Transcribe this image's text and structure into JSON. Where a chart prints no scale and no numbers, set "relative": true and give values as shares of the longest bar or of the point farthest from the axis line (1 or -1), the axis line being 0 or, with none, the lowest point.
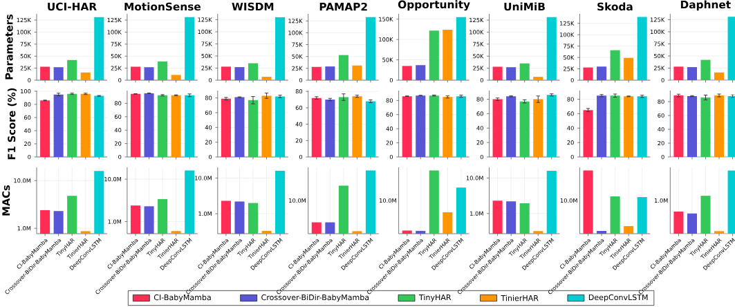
{
  "chart_data": [
    {
      "type": "bar",
      "title": "UCI-HAR",
      "ylabel": "Parameters",
      "categories": [
        null,
        null,
        null,
        null,
        null
      ],
      "colors": [
        "#ff2d55",
        "#5856d6",
        "#34c759",
        "#ff9500",
        "#00cdd2"
      ],
      "values": [
        28000,
        27000,
        42000,
        16000,
        131000
      ],
      "ylim": [
        0,
        138000
      ],
      "yticks": [
        0,
        {
          "value": 25000,
          "label": "25K"
        },
        {
          "value": 50000,
          "label": "50K"
        },
        {
          "value": 75000,
          "label": "75K"
        },
        {
          "value": 100000,
          "label": "100K"
        },
        {
          "value": 125000,
          "label": "125K"
        }
      ],
      "grid": "y",
      "tick_labels": "y"
    },
    {
      "type": "bar",
      "title": "MotionSense",
      "categories": [
        null,
        null,
        null,
        null,
        null
      ],
      "colors": [
        "#ff2d55",
        "#5856d6",
        "#34c759",
        "#ff9500",
        "#00cdd2"
      ],
      "values": [
        28000,
        27000,
        39000,
        11000,
        131000
      ],
      "ylim": [
        0,
        138000
      ],
      "yticks": [
        0,
        {
          "value": 25000,
          "label": "25K"
        },
        {
          "value": 50000,
          "label": "50K"
        },
        {
          "value": 75000,
          "label": "75K"
        },
        {
          "value": 100000,
          "label": "100K"
        },
        {
          "value": 125000,
          "label": "125K"
        }
      ],
      "grid": "y",
      "tick_labels": "y"
    },
    {
      "type": "bar",
      "title": "WISDM",
      "categories": [
        null,
        null,
        null,
        null,
        null
      ],
      "colors": [
        "#ff2d55",
        "#5856d6",
        "#34c759",
        "#ff9500",
        "#00cdd2"
      ],
      "values": [
        28000,
        27000,
        35000,
        7000,
        130000
      ],
      "ylim": [
        0,
        137000
      ],
      "yticks": [
        0,
        {
          "value": 25000,
          "label": "25K"
        },
        {
          "value": 50000,
          "label": "50K"
        },
        {
          "value": 75000,
          "label": "75K"
        },
        {
          "value": 100000,
          "label": "100K"
        },
        {
          "value": 125000,
          "label": "125K"
        }
      ],
      "grid": "y",
      "tick_labels": "y"
    },
    {
      "type": "bar",
      "title": "PAMAP2",
      "categories": [
        null,
        null,
        null,
        null,
        null
      ],
      "colors": [
        "#ff2d55",
        "#5856d6",
        "#34c759",
        "#ff9500",
        "#00cdd2"
      ],
      "values": [
        28000,
        29000,
        53000,
        31000,
        133000
      ],
      "ylim": [
        0,
        140000
      ],
      "yticks": [
        0,
        {
          "value": 25000,
          "label": "25K"
        },
        {
          "value": 50000,
          "label": "50K"
        },
        {
          "value": 75000,
          "label": "75K"
        },
        {
          "value": 100000,
          "label": "100K"
        },
        {
          "value": 125000,
          "label": "125K"
        }
      ],
      "grid": "y",
      "tick_labels": "y"
    },
    {
      "type": "bar",
      "title": "Opportunity",
      "categories": [
        null,
        null,
        null,
        null,
        null
      ],
      "colors": [
        "#ff2d55",
        "#5856d6",
        "#34c759",
        "#ff9500",
        "#00cdd2"
      ],
      "values": [
        35000,
        37000,
        122000,
        124000,
        155000
      ],
      "ylim": [
        0,
        163000
      ],
      "yticks": [
        0,
        {
          "value": 50000,
          "label": "50K"
        },
        {
          "value": 100000,
          "label": "100K"
        },
        {
          "value": 150000,
          "label": "150K"
        }
      ],
      "grid": "y",
      "tick_labels": "y"
    },
    {
      "type": "bar",
      "title": "UniMiB",
      "categories": [
        null,
        null,
        null,
        null,
        null
      ],
      "colors": [
        "#ff2d55",
        "#5856d6",
        "#34c759",
        "#ff9500",
        "#00cdd2"
      ],
      "values": [
        28000,
        27000,
        35000,
        7000,
        131000
      ],
      "ylim": [
        0,
        138000
      ],
      "yticks": [
        0,
        {
          "value": 25000,
          "label": "25K"
        },
        {
          "value": 50000,
          "label": "50K"
        },
        {
          "value": 75000,
          "label": "75K"
        },
        {
          "value": 100000,
          "label": "100K"
        },
        {
          "value": 125000,
          "label": "125K"
        }
      ],
      "grid": "y",
      "tick_labels": "y"
    },
    {
      "type": "bar",
      "title": "Skoda",
      "categories": [
        null,
        null,
        null,
        null,
        null
      ],
      "colors": [
        "#ff2d55",
        "#5856d6",
        "#34c759",
        "#ff9500",
        "#00cdd2"
      ],
      "values": [
        28000,
        30000,
        66000,
        49000,
        139000
      ],
      "ylim": [
        0,
        146000
      ],
      "yticks": [
        0,
        {
          "value": 25000,
          "label": "25K"
        },
        {
          "value": 50000,
          "label": "50K"
        },
        {
          "value": 75000,
          "label": "75K"
        },
        {
          "value": 100000,
          "label": "100K"
        },
        {
          "value": 125000,
          "label": "125K"
        }
      ],
      "grid": "y",
      "tick_labels": "y"
    },
    {
      "type": "bar",
      "title": "Daphnet",
      "categories": [
        null,
        null,
        null,
        null,
        null
      ],
      "colors": [
        "#ff2d55",
        "#5856d6",
        "#34c759",
        "#ff9500",
        "#00cdd2"
      ],
      "values": [
        28000,
        27000,
        42000,
        16000,
        131000
      ],
      "ylim": [
        0,
        137000
      ],
      "yticks": [
        0,
        {
          "value": 25000,
          "label": "25K"
        },
        {
          "value": 50000,
          "label": "50K"
        },
        {
          "value": 75000,
          "label": "75K"
        },
        {
          "value": 100000,
          "label": "100K"
        },
        {
          "value": 125000,
          "label": "125K"
        }
      ],
      "grid": "y",
      "tick_labels": "y"
    },
    {
      "type": "bar",
      "ylabel": "F1 Score (%)",
      "categories": [
        null,
        null,
        null,
        null,
        null
      ],
      "colors": [
        "#ff2d55",
        "#5856d6",
        "#34c759",
        "#ff9500",
        "#00cdd2"
      ],
      "values": [
        86,
        95,
        96,
        96,
        93
      ],
      "errors": [
        0.5,
        2,
        1,
        1,
        0.5
      ],
      "ylim": [
        0,
        101
      ],
      "yticks": [
        0,
        20,
        40,
        60,
        80,
        100
      ],
      "grid": "y",
      "tick_labels": "y"
    },
    {
      "type": "bar",
      "categories": [
        null,
        null,
        null,
        null,
        null
      ],
      "colors": [
        "#ff2d55",
        "#5856d6",
        "#34c759",
        "#ff9500",
        "#00cdd2"
      ],
      "values": [
        94,
        95,
        92,
        92,
        92
      ],
      "errors": [
        0.3,
        0.3,
        1,
        0.7,
        2
      ],
      "ylim": [
        0,
        99
      ],
      "yticks": [
        0,
        20,
        40,
        60,
        80
      ],
      "grid": "y",
      "tick_labels": "y"
    },
    {
      "type": "bar",
      "categories": [
        null,
        null,
        null,
        null,
        null
      ],
      "colors": [
        "#ff2d55",
        "#5856d6",
        "#34c759",
        "#ff9500",
        "#00cdd2"
      ],
      "values": [
        79,
        81,
        77,
        83,
        82
      ],
      "errors": [
        1.7,
        0.5,
        5,
        3.5,
        1.7
      ],
      "ylim": [
        0,
        90
      ],
      "yticks": [
        0,
        20,
        40,
        60,
        80
      ],
      "grid": "y",
      "tick_labels": "y"
    },
    {
      "type": "bar",
      "categories": [
        null,
        null,
        null,
        null,
        null
      ],
      "colors": [
        "#ff2d55",
        "#5856d6",
        "#34c759",
        "#ff9500",
        "#00cdd2"
      ],
      "values": [
        72,
        70,
        73,
        74,
        68
      ],
      "errors": [
        1.5,
        1.5,
        4,
        1.3,
        1.7
      ],
      "ylim": [
        0,
        81
      ],
      "yticks": [
        0,
        20,
        40,
        60,
        80
      ],
      "grid": "y",
      "tick_labels": "y"
    },
    {
      "type": "bar",
      "categories": [
        null,
        null,
        null,
        null,
        null
      ],
      "colors": [
        "#ff2d55",
        "#5856d6",
        "#34c759",
        "#ff9500",
        "#00cdd2"
      ],
      "values": [
        86,
        87,
        87,
        85,
        86
      ],
      "errors": [
        0.4,
        0.3,
        0.7,
        1.5,
        1.5
      ],
      "ylim": [
        0,
        94
      ],
      "yticks": [
        0,
        20,
        40,
        60,
        80
      ],
      "grid": "y",
      "tick_labels": "y"
    },
    {
      "type": "bar",
      "categories": [
        null,
        null,
        null,
        null,
        null
      ],
      "colors": [
        "#ff2d55",
        "#5856d6",
        "#34c759",
        "#ff9500",
        "#00cdd2"
      ],
      "values": [
        80,
        84,
        77,
        80,
        86
      ],
      "errors": [
        1.7,
        0.7,
        2.2,
        4.5,
        1.5
      ],
      "ylim": [
        0,
        92
      ],
      "yticks": [
        0,
        20,
        40,
        60,
        80
      ],
      "grid": "y",
      "tick_labels": "y"
    },
    {
      "type": "bar",
      "categories": [
        null,
        null,
        null,
        null,
        null
      ],
      "colors": [
        "#ff2d55",
        "#5856d6",
        "#34c759",
        "#ff9500",
        "#00cdd2"
      ],
      "values": [
        65,
        85,
        85,
        84,
        84
      ],
      "errors": [
        2.2,
        1.5,
        2.2,
        0.5,
        1.5
      ],
      "ylim": [
        0,
        92
      ],
      "yticks": [
        0,
        20,
        40,
        60,
        80
      ],
      "grid": "y",
      "tick_labels": "y"
    },
    {
      "type": "bar",
      "categories": [
        null,
        null,
        null,
        null,
        null
      ],
      "colors": [
        "#ff2d55",
        "#5856d6",
        "#34c759",
        "#ff9500",
        "#00cdd2"
      ],
      "values": [
        89,
        88,
        86,
        89,
        88
      ],
      "errors": [
        1.8,
        0.7,
        3.5,
        2,
        2
      ],
      "ylim": [
        0,
        96
      ],
      "yticks": [
        0,
        20,
        40,
        60,
        80
      ],
      "grid": "y",
      "tick_labels": "y"
    },
    {
      "type": "bar",
      "ylabel": "MACs",
      "categories": [
        "CI-BabyMamba",
        "Crossover-BiDir-BabyMamba",
        "TinyHAR",
        "TinierHAR",
        "DeepConvLSTM"
      ],
      "series": [
        {
          "name": "CI-BabyMamba",
          "color": "#ff2d55",
          "values": [
            2400000,
            null,
            null,
            null,
            null
          ]
        },
        {
          "name": "Crossover-BiDir-BabyMamba",
          "color": "#5856d6",
          "values": [
            null,
            2300000,
            null,
            null,
            null
          ]
        },
        {
          "name": "TinyHAR",
          "color": "#34c759",
          "values": [
            null,
            null,
            4800000,
            null,
            null
          ]
        },
        {
          "name": "TinierHAR",
          "color": "#ff9500",
          "values": [
            null,
            null,
            null,
            870000,
            null
          ]
        },
        {
          "name": "DeepConvLSTM",
          "color": "#00cdd2",
          "values": [
            null,
            null,
            null,
            null,
            16000000
          ]
        }
      ],
      "log": true,
      "ylim": [
        770000,
        19000000
      ],
      "yticks": [
        {
          "value": 1000000,
          "label": "1.0M"
        },
        {
          "value": 10000000,
          "label": "10.0M"
        }
      ],
      "grid": true,
      "legend": "bottom"
    },
    {
      "type": "bar",
      "categories": [
        "CI-BabyMamba",
        "Crossover-BiDir-BabyMamba",
        "TinyHAR",
        "TinierHAR",
        "DeepConvLSTM"
      ],
      "colors": [
        "#ff2d55",
        "#5856d6",
        "#34c759",
        "#ff9500",
        "#00cdd2"
      ],
      "values": [
        2400000,
        2300000,
        3400000,
        600000,
        16000000
      ],
      "log": true,
      "ylim": [
        520000,
        19000000
      ],
      "yticks": [
        {
          "value": 1000000,
          "label": "1.0M"
        },
        {
          "value": 10000000,
          "label": "10.0M"
        }
      ],
      "grid": true
    },
    {
      "type": "bar",
      "categories": [
        "CI-BabyMamba",
        "Crossover-BiDir-BabyMamba",
        "TinyHAR",
        "TinierHAR",
        "DeepConvLSTM"
      ],
      "colors": [
        "#ff2d55",
        "#5856d6",
        "#34c759",
        "#ff9500",
        "#00cdd2"
      ],
      "values": [
        2300000,
        2200000,
        2000000,
        330000,
        16000000
      ],
      "log": true,
      "ylim": [
        275000,
        20000000
      ],
      "yticks": [
        {
          "value": 1000000,
          "label": "1.0M"
        },
        {
          "value": 10000000,
          "label": "10.0M"
        }
      ],
      "grid": true
    },
    {
      "type": "bar",
      "categories": [
        "CI-BabyMamba",
        "Crossover-BiDir-BabyMamba",
        "TinyHAR",
        "TinierHAR",
        "DeepConvLSTM"
      ],
      "colors": [
        "#ff2d55",
        "#5856d6",
        "#34c759",
        "#ff9500",
        "#00cdd2"
      ],
      "values": [
        0.18,
        0.18,
        0.76,
        0.04,
        1
      ],
      "relative": true,
      "annotations": [
        "10.0M"
      ],
      "grid": "x"
    },
    {
      "type": "bar",
      "categories": [
        "CI-BabyMamba",
        "Crossover-BiDir-BabyMamba",
        "TinyHAR",
        "TinierHAR",
        "DeepConvLSTM"
      ],
      "colors": [
        "#ff2d55",
        "#5856d6",
        "#34c759",
        "#ff9500",
        "#00cdd2"
      ],
      "values": [
        0.05,
        0.045,
        1,
        0.34,
        0.73
      ],
      "relative": true,
      "annotations": [
        "10.0M"
      ],
      "grid": "x"
    },
    {
      "type": "bar",
      "categories": [
        "CI-BabyMamba",
        "Crossover-BiDir-BabyMamba",
        "TinyHAR",
        "TinierHAR",
        "DeepConvLSTM"
      ],
      "colors": [
        "#ff2d55",
        "#5856d6",
        "#34c759",
        "#ff9500",
        "#00cdd2"
      ],
      "values": [
        2300000,
        2200000,
        1950000,
        320000,
        16000000
      ],
      "log": true,
      "ylim": [
        270000,
        20000000
      ],
      "yticks": [
        {
          "value": 1000000,
          "label": "1.0M"
        },
        {
          "value": 10000000,
          "label": "10.0M"
        }
      ],
      "grid": true
    },
    {
      "type": "bar",
      "categories": [
        "CI-BabyMamba",
        "Crossover-BiDir-BabyMamba",
        "TinyHAR",
        "TinierHAR",
        "DeepConvLSTM"
      ],
      "colors": [
        "#ff2d55",
        "#5856d6",
        "#34c759",
        "#ff9500",
        "#00cdd2"
      ],
      "values": [
        1,
        0.044,
        0.59,
        0.12,
        0.58
      ],
      "relative": true,
      "annotations": [
        "10.0M"
      ],
      "grid": "x"
    },
    {
      "type": "bar",
      "categories": [
        "CI-BabyMamba",
        "Crossover-BiDir-BabyMamba",
        "TinyHAR",
        "TinierHAR",
        "DeepConvLSTM"
      ],
      "colors": [
        "#ff2d55",
        "#5856d6",
        "#34c759",
        "#ff9500",
        "#00cdd2"
      ],
      "values": [
        0.35,
        0.32,
        0.6,
        0.04,
        1
      ],
      "relative": true,
      "annotations": [
        "1.0M"
      ],
      "grid": "x"
    }
  ]
}
